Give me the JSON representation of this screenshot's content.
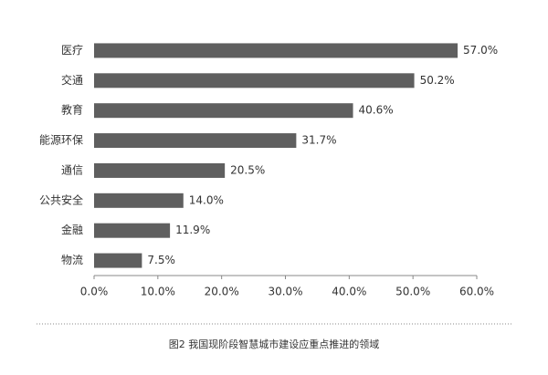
{
  "chart_data": {
    "type": "bar",
    "title": "图2  我国现阶段智慧城市建设应重点推进的领域",
    "categories": [
      "医疗",
      "交通",
      "教育",
      "能源环保",
      "通信",
      "公共安全",
      "金融",
      "物流"
    ],
    "values": [
      57.0,
      50.2,
      40.6,
      31.7,
      20.5,
      14.0,
      11.9,
      7.5
    ],
    "value_labels": [
      "57.0%",
      "50.2%",
      "40.6%",
      "31.7%",
      "20.5%",
      "14.0%",
      "11.9%",
      "7.5%"
    ],
    "color": "#5f5f5f",
    "xlim": [
      0,
      60
    ],
    "xticks": [
      {
        "value": 0,
        "label": "0.0%"
      },
      {
        "value": 10,
        "label": "10.0%"
      },
      {
        "value": 20,
        "label": "20.0%"
      },
      {
        "value": 30,
        "label": "30.0%"
      },
      {
        "value": 40,
        "label": "40.0%"
      },
      {
        "value": 50,
        "label": "50.0%"
      },
      {
        "value": 60,
        "label": "60.0%"
      }
    ]
  }
}
